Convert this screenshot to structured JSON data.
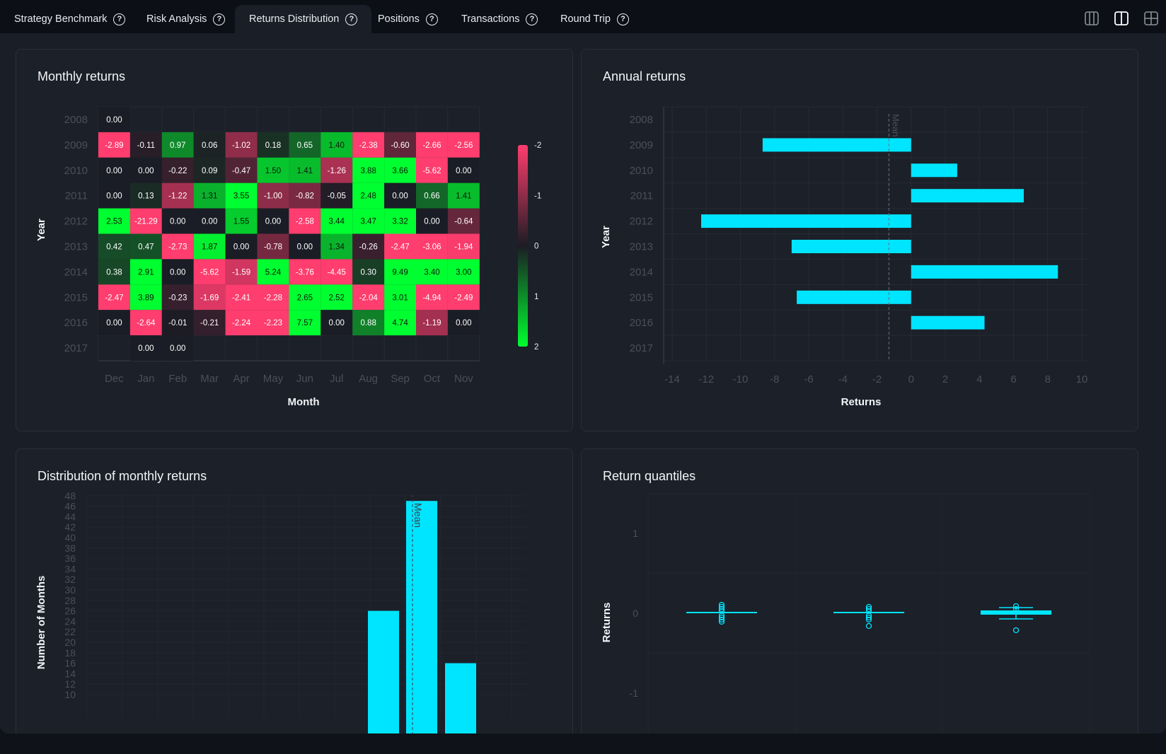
{
  "tabs": [
    {
      "label": "Strategy Benchmark",
      "active": false
    },
    {
      "label": "Risk Analysis",
      "active": false
    },
    {
      "label": "Returns Distribution",
      "active": true
    },
    {
      "label": "Positions",
      "active": false
    },
    {
      "label": "Transactions",
      "active": false
    },
    {
      "label": "Round Trip",
      "active": false
    }
  ],
  "layout_buttons": [
    "three-column-layout-icon",
    "two-column-layout-icon",
    "grid-layout-icon"
  ],
  "colors": {
    "accent": "#00e5ff",
    "positive": "#00ff30",
    "negative": "#ff3d6e",
    "background": "#1a1e27"
  },
  "cards": {
    "monthly": {
      "title": "Monthly returns"
    },
    "annual": {
      "title": "Annual returns"
    },
    "distribution": {
      "title": "Distribution of monthly returns"
    },
    "quantiles": {
      "title": "Return quantiles"
    }
  },
  "chart_data": [
    {
      "type": "heatmap",
      "title": "Monthly returns",
      "xlabel": "Month",
      "ylabel": "Year",
      "x": [
        "Dec",
        "Jan",
        "Feb",
        "Mar",
        "Apr",
        "May",
        "Jun",
        "Jul",
        "Aug",
        "Sep",
        "Oct",
        "Nov"
      ],
      "y": [
        "2008",
        "2009",
        "2010",
        "2011",
        "2012",
        "2013",
        "2014",
        "2015",
        "2016",
        "2017"
      ],
      "values": [
        [
          "0.00",
          null,
          null,
          null,
          null,
          null,
          null,
          null,
          null,
          null,
          null,
          null
        ],
        [
          "-2.89",
          "-0.11",
          "0.97",
          "0.06",
          "-1.02",
          "0.18",
          "0.65",
          "1.40",
          "-2.38",
          "-0.60",
          "-2.66",
          "-2.56"
        ],
        [
          "0.00",
          "0.00",
          "-0.22",
          "0.09",
          "-0.47",
          "1.50",
          "1.41",
          "-1.26",
          "3.88",
          "3.66",
          "-5.62",
          "0.00"
        ],
        [
          "0.00",
          "0.13",
          "-1.22",
          "1.31",
          "3.55",
          "-1.00",
          "-0.82",
          "-0.05",
          "2.48",
          "0.00",
          "0.66",
          "1.41"
        ],
        [
          "2.53",
          "-21.29",
          "0.00",
          "0.00",
          "1.55",
          "0.00",
          "-2.58",
          "3.44",
          "3.47",
          "3.32",
          "0.00",
          "-0.64"
        ],
        [
          "0.42",
          "0.47",
          "-2.73",
          "1.87",
          "0.00",
          "-0.78",
          "0.00",
          "1.34",
          "-0.26",
          "-2.47",
          "-3.06",
          "-1.94"
        ],
        [
          "0.38",
          "2.91",
          "0.00",
          "-5.62",
          "-1.59",
          "5.24",
          "-3.76",
          "-4.45",
          "0.30",
          "9.49",
          "3.40",
          "3.00"
        ],
        [
          "-2.47",
          "3.89",
          "-0.23",
          "-1.69",
          "-2.41",
          "-2.28",
          "2.65",
          "2.52",
          "-2.04",
          "3.01",
          "-4.94",
          "-2.49"
        ],
        [
          "0.00",
          "-2.64",
          "-0.01",
          "-0.21",
          "-2.24",
          "-2.23",
          "7.57",
          "0.00",
          "0.88",
          "4.74",
          "-1.19",
          "0.00"
        ],
        [
          null,
          "0.00",
          "0.00",
          null,
          null,
          null,
          null,
          null,
          null,
          null,
          null,
          null
        ]
      ],
      "colorbar_ticks": [
        "-2",
        "-1",
        "0",
        "1",
        "2"
      ],
      "color_range": [
        -2,
        2
      ]
    },
    {
      "type": "bar",
      "orientation": "horizontal",
      "title": "Annual returns",
      "xlabel": "Returns",
      "ylabel": "Year",
      "categories": [
        "2008",
        "2009",
        "2010",
        "2011",
        "2012",
        "2013",
        "2014",
        "2015",
        "2016",
        "2017"
      ],
      "values": [
        0,
        -8.7,
        2.7,
        6.6,
        -12.3,
        -7.0,
        8.6,
        -6.7,
        4.3,
        0
      ],
      "xlim": [
        -14,
        10
      ],
      "xticks": [
        "-14",
        "-12",
        "-10",
        "-8",
        "-6",
        "-4",
        "-2",
        "0",
        "2",
        "4",
        "6",
        "8",
        "10"
      ],
      "mean": -1.3,
      "mean_label": "Mean"
    },
    {
      "type": "bar",
      "title": "Distribution of monthly returns",
      "ylabel": "Number of Months",
      "y_ticks": [
        "10",
        "12",
        "14",
        "16",
        "18",
        "20",
        "22",
        "24",
        "26",
        "28",
        "30",
        "32",
        "34",
        "36",
        "38",
        "40",
        "42",
        "44",
        "46",
        "48"
      ],
      "ylim_visible": [
        10,
        48
      ],
      "bars": [
        26,
        47,
        16
      ],
      "mean_label": "Mean"
    },
    {
      "type": "box",
      "title": "Return quantiles",
      "ylabel": "Returns",
      "yticks": [
        "1",
        "0",
        "-1"
      ],
      "ylim": [
        -1,
        1
      ]
    }
  ]
}
